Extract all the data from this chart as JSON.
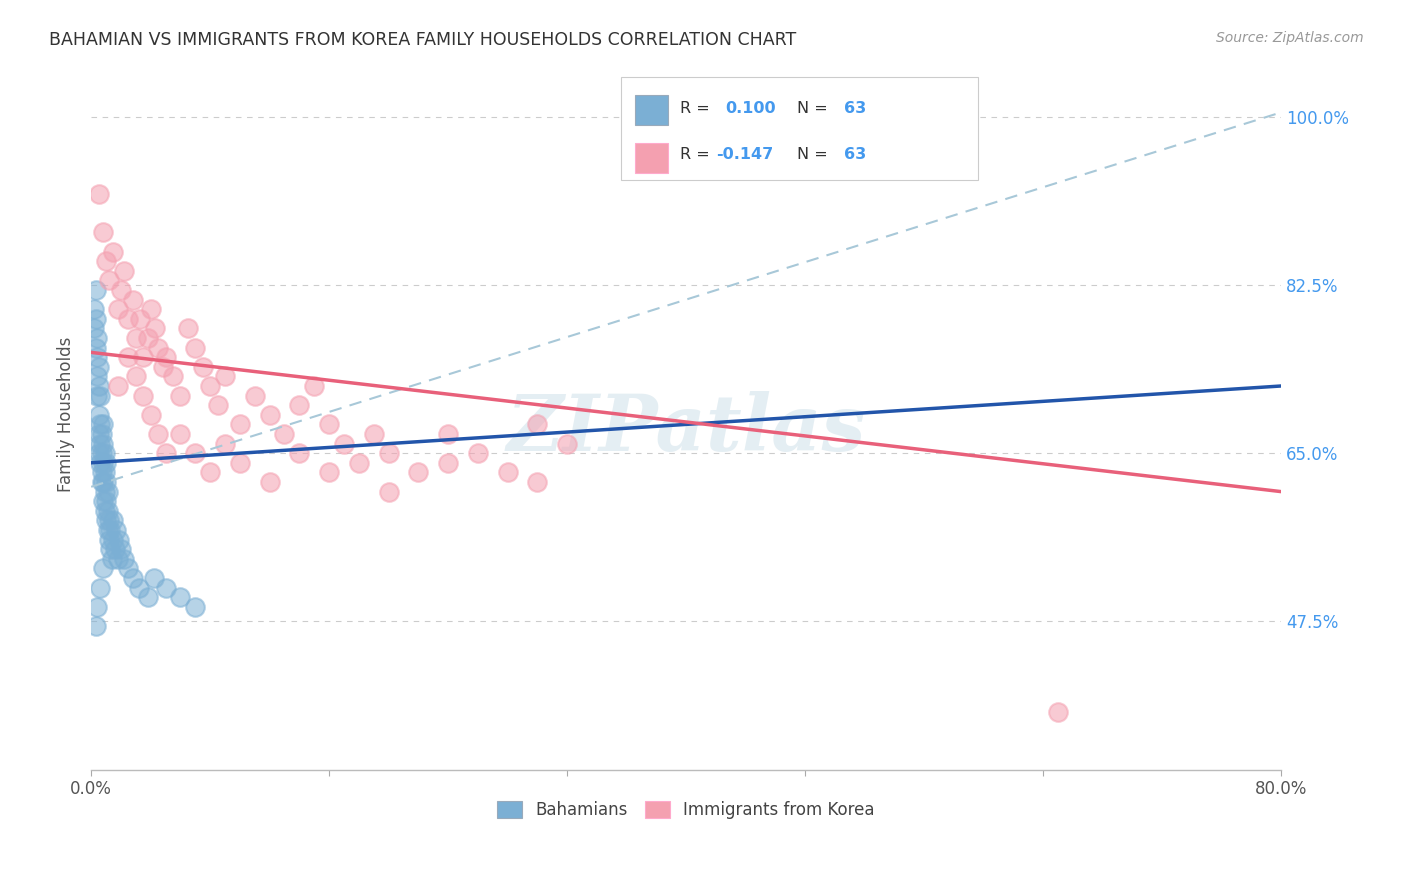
{
  "title": "BAHAMIAN VS IMMIGRANTS FROM KOREA FAMILY HOUSEHOLDS CORRELATION CHART",
  "source": "Source: ZipAtlas.com",
  "ylabel": "Family Households",
  "xlim": [
    0.0,
    0.8
  ],
  "ylim": [
    0.32,
    1.06
  ],
  "yticks": [
    0.475,
    0.65,
    0.825,
    1.0
  ],
  "ytick_labels": [
    "47.5%",
    "65.0%",
    "82.5%",
    "100.0%"
  ],
  "xticks": [
    0.0,
    0.16,
    0.32,
    0.48,
    0.64,
    0.8
  ],
  "xtick_labels": [
    "0.0%",
    "",
    "",
    "",
    "",
    "80.0%"
  ],
  "legend_bottom": [
    "Bahamians",
    "Immigrants from Korea"
  ],
  "color_blue": "#7BAFD4",
  "color_pink": "#F4A0B0",
  "trendline_blue_color": "#2255AA",
  "trendline_pink_color": "#E8607A",
  "trendline_dashed_color": "#A8C8D8",
  "watermark": "ZIPatlas",
  "bahamians_x": [
    0.002,
    0.002,
    0.003,
    0.003,
    0.003,
    0.004,
    0.004,
    0.004,
    0.004,
    0.005,
    0.005,
    0.005,
    0.005,
    0.005,
    0.006,
    0.006,
    0.006,
    0.006,
    0.007,
    0.007,
    0.007,
    0.007,
    0.008,
    0.008,
    0.008,
    0.008,
    0.008,
    0.009,
    0.009,
    0.009,
    0.009,
    0.01,
    0.01,
    0.01,
    0.01,
    0.011,
    0.011,
    0.011,
    0.012,
    0.012,
    0.013,
    0.013,
    0.014,
    0.015,
    0.015,
    0.016,
    0.017,
    0.018,
    0.019,
    0.02,
    0.022,
    0.025,
    0.028,
    0.032,
    0.038,
    0.042,
    0.05,
    0.06,
    0.07,
    0.003,
    0.004,
    0.006,
    0.008
  ],
  "bahamians_y": [
    0.78,
    0.8,
    0.76,
    0.79,
    0.82,
    0.75,
    0.77,
    0.73,
    0.71,
    0.74,
    0.72,
    0.69,
    0.67,
    0.65,
    0.68,
    0.66,
    0.64,
    0.71,
    0.63,
    0.65,
    0.67,
    0.62,
    0.6,
    0.62,
    0.64,
    0.66,
    0.68,
    0.59,
    0.61,
    0.63,
    0.65,
    0.58,
    0.6,
    0.62,
    0.64,
    0.57,
    0.59,
    0.61,
    0.56,
    0.58,
    0.55,
    0.57,
    0.54,
    0.56,
    0.58,
    0.55,
    0.57,
    0.54,
    0.56,
    0.55,
    0.54,
    0.53,
    0.52,
    0.51,
    0.5,
    0.52,
    0.51,
    0.5,
    0.49,
    0.47,
    0.49,
    0.51,
    0.53
  ],
  "korea_x": [
    0.005,
    0.008,
    0.01,
    0.012,
    0.015,
    0.018,
    0.02,
    0.022,
    0.025,
    0.028,
    0.03,
    0.033,
    0.035,
    0.038,
    0.04,
    0.043,
    0.045,
    0.048,
    0.05,
    0.055,
    0.06,
    0.065,
    0.07,
    0.075,
    0.08,
    0.085,
    0.09,
    0.1,
    0.11,
    0.12,
    0.13,
    0.14,
    0.15,
    0.16,
    0.17,
    0.18,
    0.19,
    0.2,
    0.22,
    0.24,
    0.26,
    0.28,
    0.3,
    0.32,
    0.018,
    0.025,
    0.03,
    0.035,
    0.04,
    0.045,
    0.05,
    0.06,
    0.07,
    0.08,
    0.09,
    0.1,
    0.12,
    0.14,
    0.16,
    0.2,
    0.24,
    0.3,
    0.65
  ],
  "korea_y": [
    0.92,
    0.88,
    0.85,
    0.83,
    0.86,
    0.8,
    0.82,
    0.84,
    0.79,
    0.81,
    0.77,
    0.79,
    0.75,
    0.77,
    0.8,
    0.78,
    0.76,
    0.74,
    0.75,
    0.73,
    0.71,
    0.78,
    0.76,
    0.74,
    0.72,
    0.7,
    0.73,
    0.68,
    0.71,
    0.69,
    0.67,
    0.7,
    0.72,
    0.68,
    0.66,
    0.64,
    0.67,
    0.65,
    0.63,
    0.67,
    0.65,
    0.63,
    0.68,
    0.66,
    0.72,
    0.75,
    0.73,
    0.71,
    0.69,
    0.67,
    0.65,
    0.67,
    0.65,
    0.63,
    0.66,
    0.64,
    0.62,
    0.65,
    0.63,
    0.61,
    0.64,
    0.62,
    0.38
  ],
  "blue_trend": [
    0.0,
    0.8,
    0.64,
    0.72
  ],
  "pink_trend": [
    0.0,
    0.8,
    0.755,
    0.61
  ],
  "dashed_trend": [
    0.0,
    0.8,
    0.615,
    1.005
  ]
}
